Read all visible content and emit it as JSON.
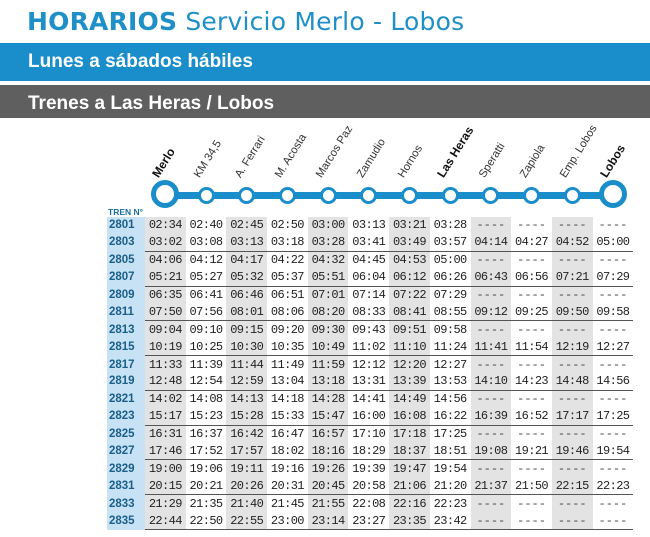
{
  "title": {
    "bold": "HORARIOS",
    "rest": "Servicio Merlo - Lobos"
  },
  "band_days": "Lunes a sábados hábiles",
  "band_direction": "Trenes a Las Heras / Lobos",
  "colors": {
    "accent": "#1a8dcb",
    "dark_band": "#5f5f5f",
    "tren_col": "#c7e2f4",
    "shade_col": "#e3e3e3"
  },
  "table_header": "TREN N°",
  "stations": [
    "Merlo",
    "KM 34,5",
    "A. Ferrari",
    "M. Acosta",
    "Marcos Paz",
    "Zamudio",
    "Hornos",
    "Las Heras",
    "Speratti",
    "Zapiola",
    "Emp. Lobos",
    "Lobos"
  ],
  "major_stations": [
    0,
    7,
    11
  ],
  "trains": [
    {
      "n": "2801",
      "t": [
        "02:34",
        "02:40",
        "02:45",
        "02:50",
        "03:00",
        "03:13",
        "03:21",
        "03:28",
        "----",
        "----",
        "----",
        "----"
      ]
    },
    {
      "n": "2803",
      "t": [
        "03:02",
        "03:08",
        "03:13",
        "03:18",
        "03:28",
        "03:41",
        "03:49",
        "03:57",
        "04:14",
        "04:27",
        "04:52",
        "05:00"
      ]
    },
    {
      "n": "2805",
      "t": [
        "04:06",
        "04:12",
        "04:17",
        "04:22",
        "04:32",
        "04:45",
        "04:53",
        "05:00",
        "----",
        "----",
        "----",
        "----"
      ]
    },
    {
      "n": "2807",
      "t": [
        "05:21",
        "05:27",
        "05:32",
        "05:37",
        "05:51",
        "06:04",
        "06:12",
        "06:26",
        "06:43",
        "06:56",
        "07:21",
        "07:29"
      ]
    },
    {
      "n": "2809",
      "t": [
        "06:35",
        "06:41",
        "06:46",
        "06:51",
        "07:01",
        "07:14",
        "07:22",
        "07:29",
        "----",
        "----",
        "----",
        "----"
      ]
    },
    {
      "n": "2811",
      "t": [
        "07:50",
        "07:56",
        "08:01",
        "08:06",
        "08:20",
        "08:33",
        "08:41",
        "08:55",
        "09:12",
        "09:25",
        "09:50",
        "09:58"
      ]
    },
    {
      "n": "2813",
      "t": [
        "09:04",
        "09:10",
        "09:15",
        "09:20",
        "09:30",
        "09:43",
        "09:51",
        "09:58",
        "----",
        "----",
        "----",
        "----"
      ]
    },
    {
      "n": "2815",
      "t": [
        "10:19",
        "10:25",
        "10:30",
        "10:35",
        "10:49",
        "11:02",
        "11:10",
        "11:24",
        "11:41",
        "11:54",
        "12:19",
        "12:27"
      ]
    },
    {
      "n": "2817",
      "t": [
        "11:33",
        "11:39",
        "11:44",
        "11:49",
        "11:59",
        "12:12",
        "12:20",
        "12:27",
        "----",
        "----",
        "----",
        "----"
      ]
    },
    {
      "n": "2819",
      "t": [
        "12:48",
        "12:54",
        "12:59",
        "13:04",
        "13:18",
        "13:31",
        "13:39",
        "13:53",
        "14:10",
        "14:23",
        "14:48",
        "14:56"
      ]
    },
    {
      "n": "2821",
      "t": [
        "14:02",
        "14:08",
        "14:13",
        "14:18",
        "14:28",
        "14:41",
        "14:49",
        "14:56",
        "----",
        "----",
        "----",
        "----"
      ]
    },
    {
      "n": "2823",
      "t": [
        "15:17",
        "15:23",
        "15:28",
        "15:33",
        "15:47",
        "16:00",
        "16:08",
        "16:22",
        "16:39",
        "16:52",
        "17:17",
        "17:25"
      ]
    },
    {
      "n": "2825",
      "t": [
        "16:31",
        "16:37",
        "16:42",
        "16:47",
        "16:57",
        "17:10",
        "17:18",
        "17:25",
        "----",
        "----",
        "----",
        "----"
      ]
    },
    {
      "n": "2827",
      "t": [
        "17:46",
        "17:52",
        "17:57",
        "18:02",
        "18:16",
        "18:29",
        "18:37",
        "18:51",
        "19:08",
        "19:21",
        "19:46",
        "19:54"
      ]
    },
    {
      "n": "2829",
      "t": [
        "19:00",
        "19:06",
        "19:11",
        "19:16",
        "19:26",
        "19:39",
        "19:47",
        "19:54",
        "----",
        "----",
        "----",
        "----"
      ]
    },
    {
      "n": "2831",
      "t": [
        "20:15",
        "20:21",
        "20:26",
        "20:31",
        "20:45",
        "20:58",
        "21:06",
        "21:20",
        "21:37",
        "21:50",
        "22:15",
        "22:23"
      ]
    },
    {
      "n": "2833",
      "t": [
        "21:29",
        "21:35",
        "21:40",
        "21:45",
        "21:55",
        "22:08",
        "22:16",
        "22:23",
        "----",
        "----",
        "----",
        "----"
      ]
    },
    {
      "n": "2835",
      "t": [
        "22:44",
        "22:50",
        "22:55",
        "23:00",
        "23:14",
        "23:27",
        "23:35",
        "23:42",
        "----",
        "----",
        "----",
        "----"
      ]
    }
  ]
}
